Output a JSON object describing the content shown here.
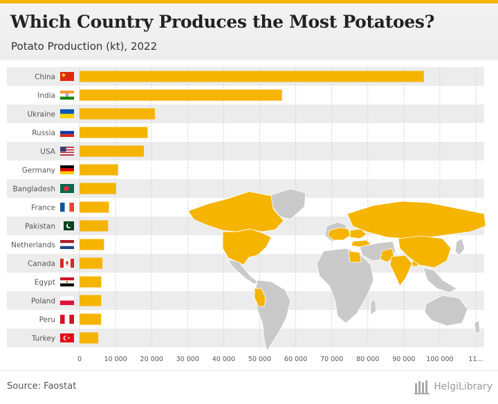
{
  "header": {
    "title": "Which Country Produces the Most Potatoes?",
    "subtitle": "Potato Production (kt), 2022"
  },
  "footer": {
    "source": "Source: Faostat",
    "brand": "HelgiLibrary"
  },
  "colors": {
    "bar": "#f5b400",
    "stripe": "#ececec",
    "grid": "#cfcfcf",
    "map_land": "#c9c9c9",
    "map_highlight": "#f5b400",
    "label": "#555555"
  },
  "chart_data": {
    "type": "bar",
    "orientation": "horizontal",
    "title": "Which Country Produces the Most Potatoes?",
    "subtitle": "Potato Production (kt), 2022",
    "categories": [
      "China",
      "India",
      "Ukraine",
      "Russia",
      "USA",
      "Germany",
      "Bangladesh",
      "France",
      "Pakistan",
      "Netherlands",
      "Canada",
      "Egypt",
      "Poland",
      "Peru",
      "Turkey"
    ],
    "values": [
      95560,
      56180,
      20900,
      18890,
      17850,
      10680,
      10140,
      8150,
      7940,
      6800,
      6350,
      6030,
      6010,
      5990,
      5200
    ],
    "xlim": [
      0,
      110000
    ],
    "xticks": [
      "0",
      "10 000",
      "20 000",
      "30 000",
      "40 000",
      "50 000",
      "60 000",
      "70 000",
      "80 000",
      "90 000",
      "100 000",
      "11..."
    ],
    "flags": [
      "flag-china-icon",
      "flag-india-icon",
      "flag-ukraine-icon",
      "flag-russia-icon",
      "flag-usa-icon",
      "flag-germany-icon",
      "flag-bangladesh-icon",
      "flag-france-icon",
      "flag-pakistan-icon",
      "flag-netherlands-icon",
      "flag-canada-icon",
      "flag-egypt-icon",
      "flag-poland-icon",
      "flag-peru-icon",
      "flag-turkey-icon"
    ],
    "grid": true,
    "inset": "world-map-icon"
  }
}
